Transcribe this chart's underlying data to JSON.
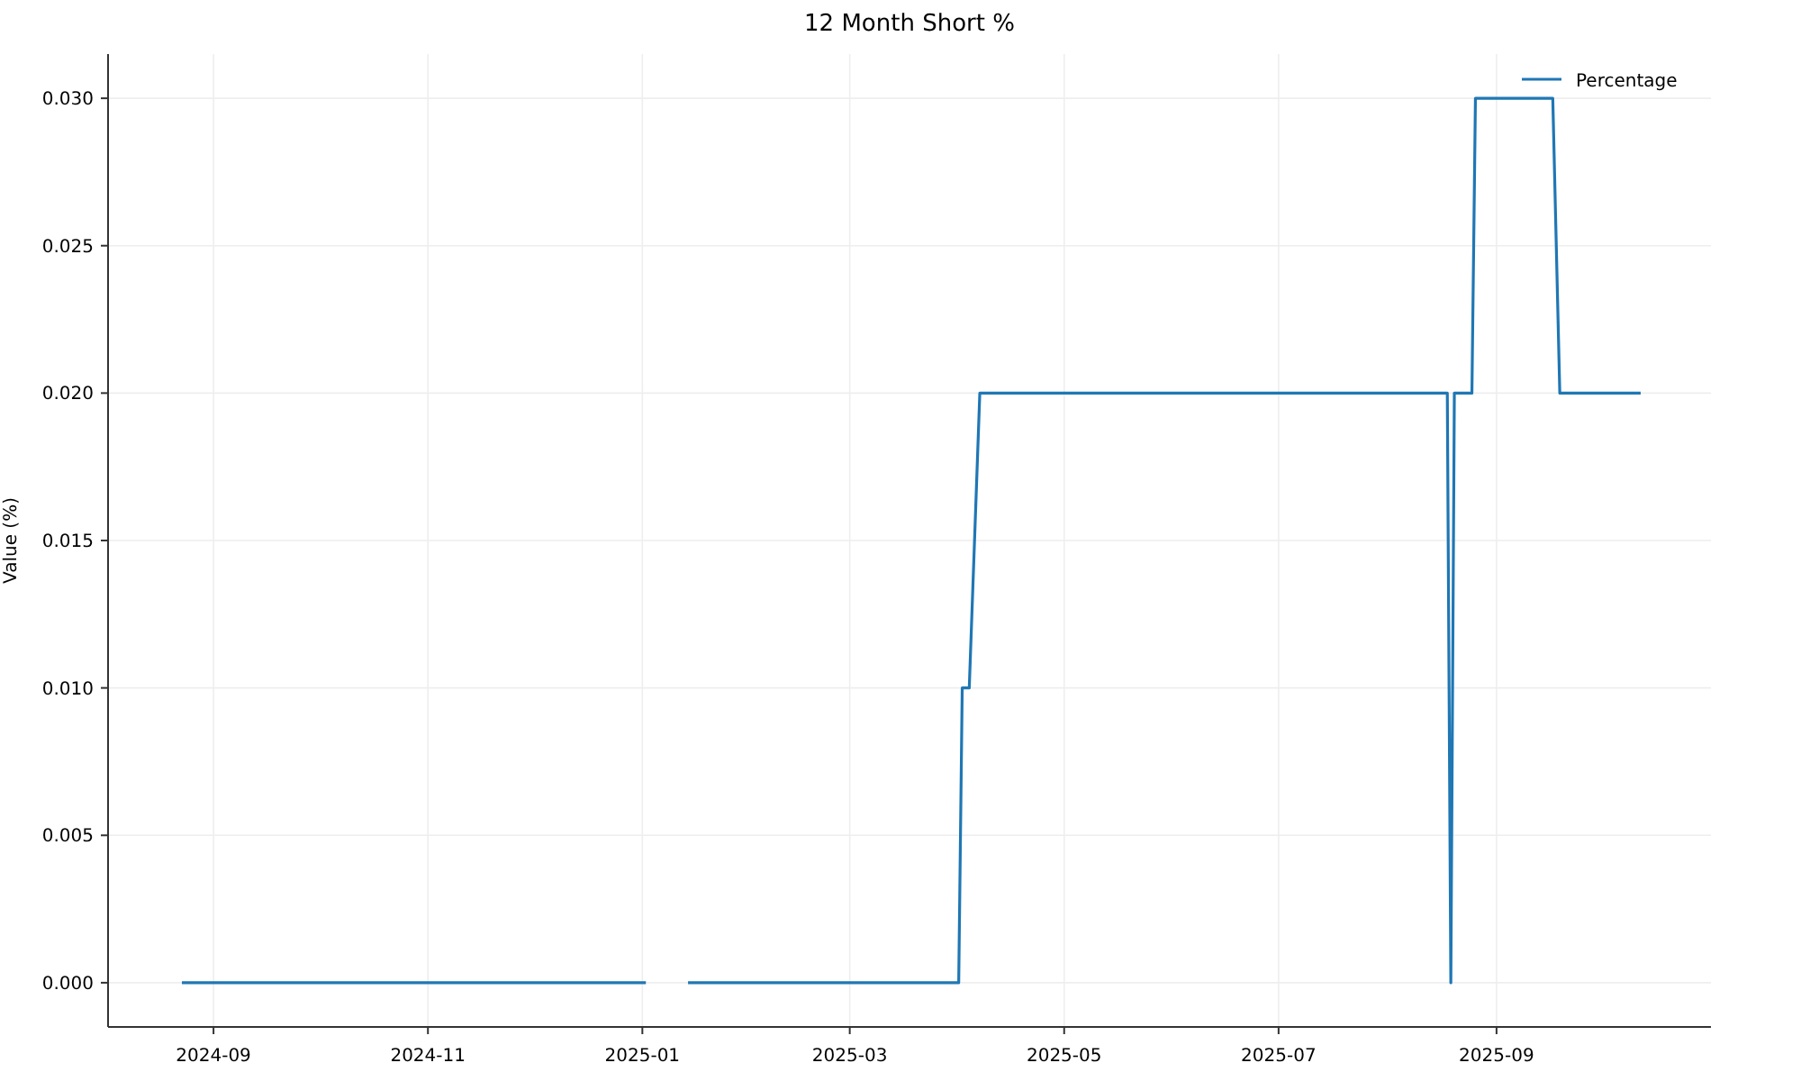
{
  "chart_data": {
    "type": "line",
    "title": "12 Month Short %",
    "ylabel": "Value (%)",
    "x": [
      "2024-08-23",
      "2025-01-02",
      "2025-01-08",
      "2025-01-14",
      "2025-04-01",
      "2025-04-02",
      "2025-04-04",
      "2025-04-07",
      "2025-08-18",
      "2025-08-19",
      "2025-08-20",
      "2025-08-25",
      "2025-08-26",
      "2025-09-17",
      "2025-09-19",
      "2025-10-12"
    ],
    "series": [
      {
        "name": "Percentage",
        "color": "#1f77b4",
        "values": [
          0,
          0,
          null,
          0,
          0,
          0.01,
          0.01,
          0.02,
          0.02,
          0,
          0.02,
          0.02,
          0.03,
          0.03,
          0.02,
          0.02
        ]
      }
    ],
    "xlim": [
      "2024-08-02",
      "2025-11-01"
    ],
    "xticks": [
      "2024-09",
      "2024-11",
      "2025-01",
      "2025-03",
      "2025-05",
      "2025-07",
      "2025-09"
    ],
    "ylim": [
      -0.0015,
      0.0315
    ],
    "yticks": [
      {
        "value": 0,
        "label": "0.000"
      },
      {
        "value": 0.005,
        "label": "0.005"
      },
      {
        "value": 0.01,
        "label": "0.010"
      },
      {
        "value": 0.015,
        "label": "0.015"
      },
      {
        "value": 0.02,
        "label": "0.020"
      },
      {
        "value": 0.025,
        "label": "0.025"
      },
      {
        "value": 0.03,
        "label": "0.030"
      }
    ],
    "grid": true,
    "legend": "top right",
    "line_style": "solid",
    "marker": "none"
  }
}
